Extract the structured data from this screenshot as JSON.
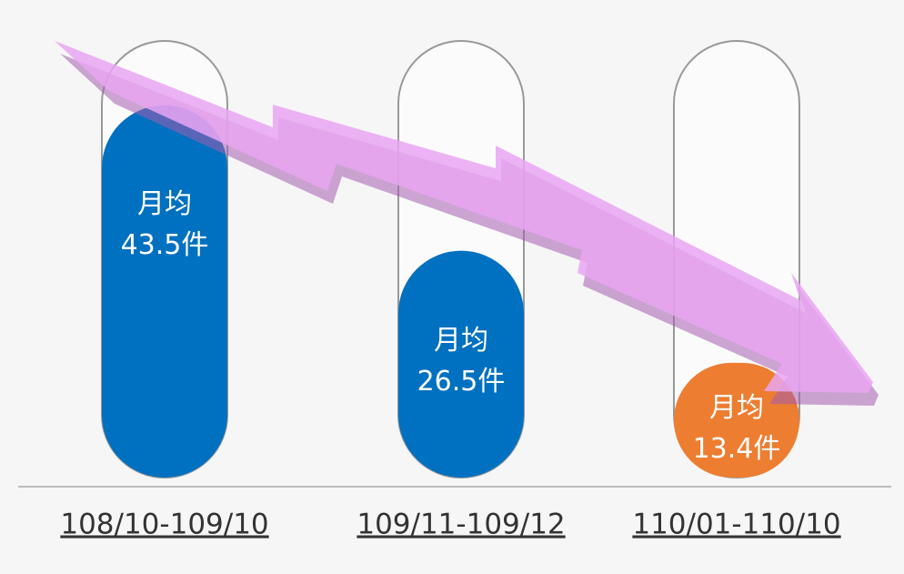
{
  "chart_data": {
    "type": "bar",
    "categories": [
      "108/10-109/10",
      "109/11-109/12",
      "110/01-110/10"
    ],
    "values": [
      43.5,
      26.5,
      13.4
    ],
    "value_label_prefix": "月均",
    "value_labels": [
      "43.5件",
      "26.5件",
      "13.4件"
    ],
    "colors": [
      "#0070c0",
      "#0070c0",
      "#ed7d31"
    ],
    "ylim": [
      0,
      51
    ]
  }
}
